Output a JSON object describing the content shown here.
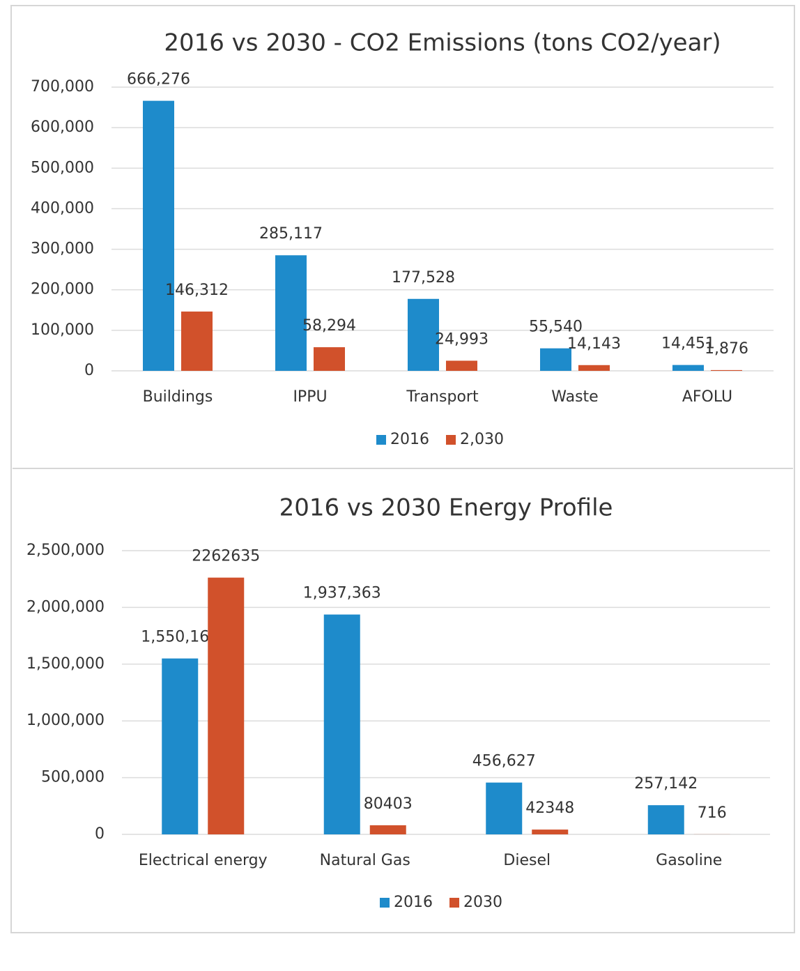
{
  "chart_data": [
    {
      "type": "bar",
      "title": "2016 vs 2030 - CO2 Emissions (tons CO2/year)",
      "categories": [
        "Buildings",
        "IPPU",
        "Transport",
        "Waste",
        "AFOLU"
      ],
      "series": [
        {
          "name": "2016",
          "color": "#1e8bcb",
          "values": [
            666276,
            285117,
            177528,
            55540,
            14451
          ],
          "value_labels": [
            "666,276",
            "285,117",
            "177,528",
            "55,540",
            "14,451"
          ]
        },
        {
          "name": "2,030",
          "color": "#d1512b",
          "values": [
            146312,
            58294,
            24993,
            14143,
            1876
          ],
          "value_labels": [
            "146,312",
            "58,294",
            "24,993",
            "14,143",
            "1,876"
          ]
        }
      ],
      "ylim": [
        0,
        700000
      ],
      "yticks": [
        0,
        {
          "value": 100000,
          "label": "100,000"
        },
        {
          "value": 200000,
          "label": "200,000"
        },
        {
          "value": 300000,
          "label": "300,000"
        },
        {
          "value": 400000,
          "label": "400,000"
        },
        {
          "value": 500000,
          "label": "500,000"
        },
        {
          "value": 600000,
          "label": "600,000"
        },
        {
          "value": 700000,
          "label": "700,000"
        }
      ],
      "grid": true,
      "legend": "bottom"
    },
    {
      "type": "bar",
      "title": "2016 vs 2030 Energy Profile",
      "categories": [
        "Electrical energy",
        "Natural Gas",
        "Diesel",
        "Gasoline"
      ],
      "series": [
        {
          "name": "2016",
          "color": "#1e8bcb",
          "values": [
            1550168,
            1937363,
            456627,
            257142
          ],
          "value_labels": [
            "1,550,168",
            "1,937,363",
            "456,627",
            "257,142"
          ]
        },
        {
          "name": "2030",
          "color": "#d1512b",
          "values": [
            2262635,
            80403,
            42348,
            716
          ]
        }
      ],
      "ylim": [
        0,
        2500000
      ],
      "yticks": [
        0,
        {
          "value": 500000,
          "label": "500,000"
        },
        {
          "value": 1000000,
          "label": "1,000,000"
        },
        {
          "value": 1500000,
          "label": "1,500,000"
        },
        {
          "value": 2000000,
          "label": "2,000,000"
        },
        {
          "value": 2500000,
          "label": "2,500,000"
        }
      ],
      "grid": true,
      "legend": "bottom"
    }
  ]
}
